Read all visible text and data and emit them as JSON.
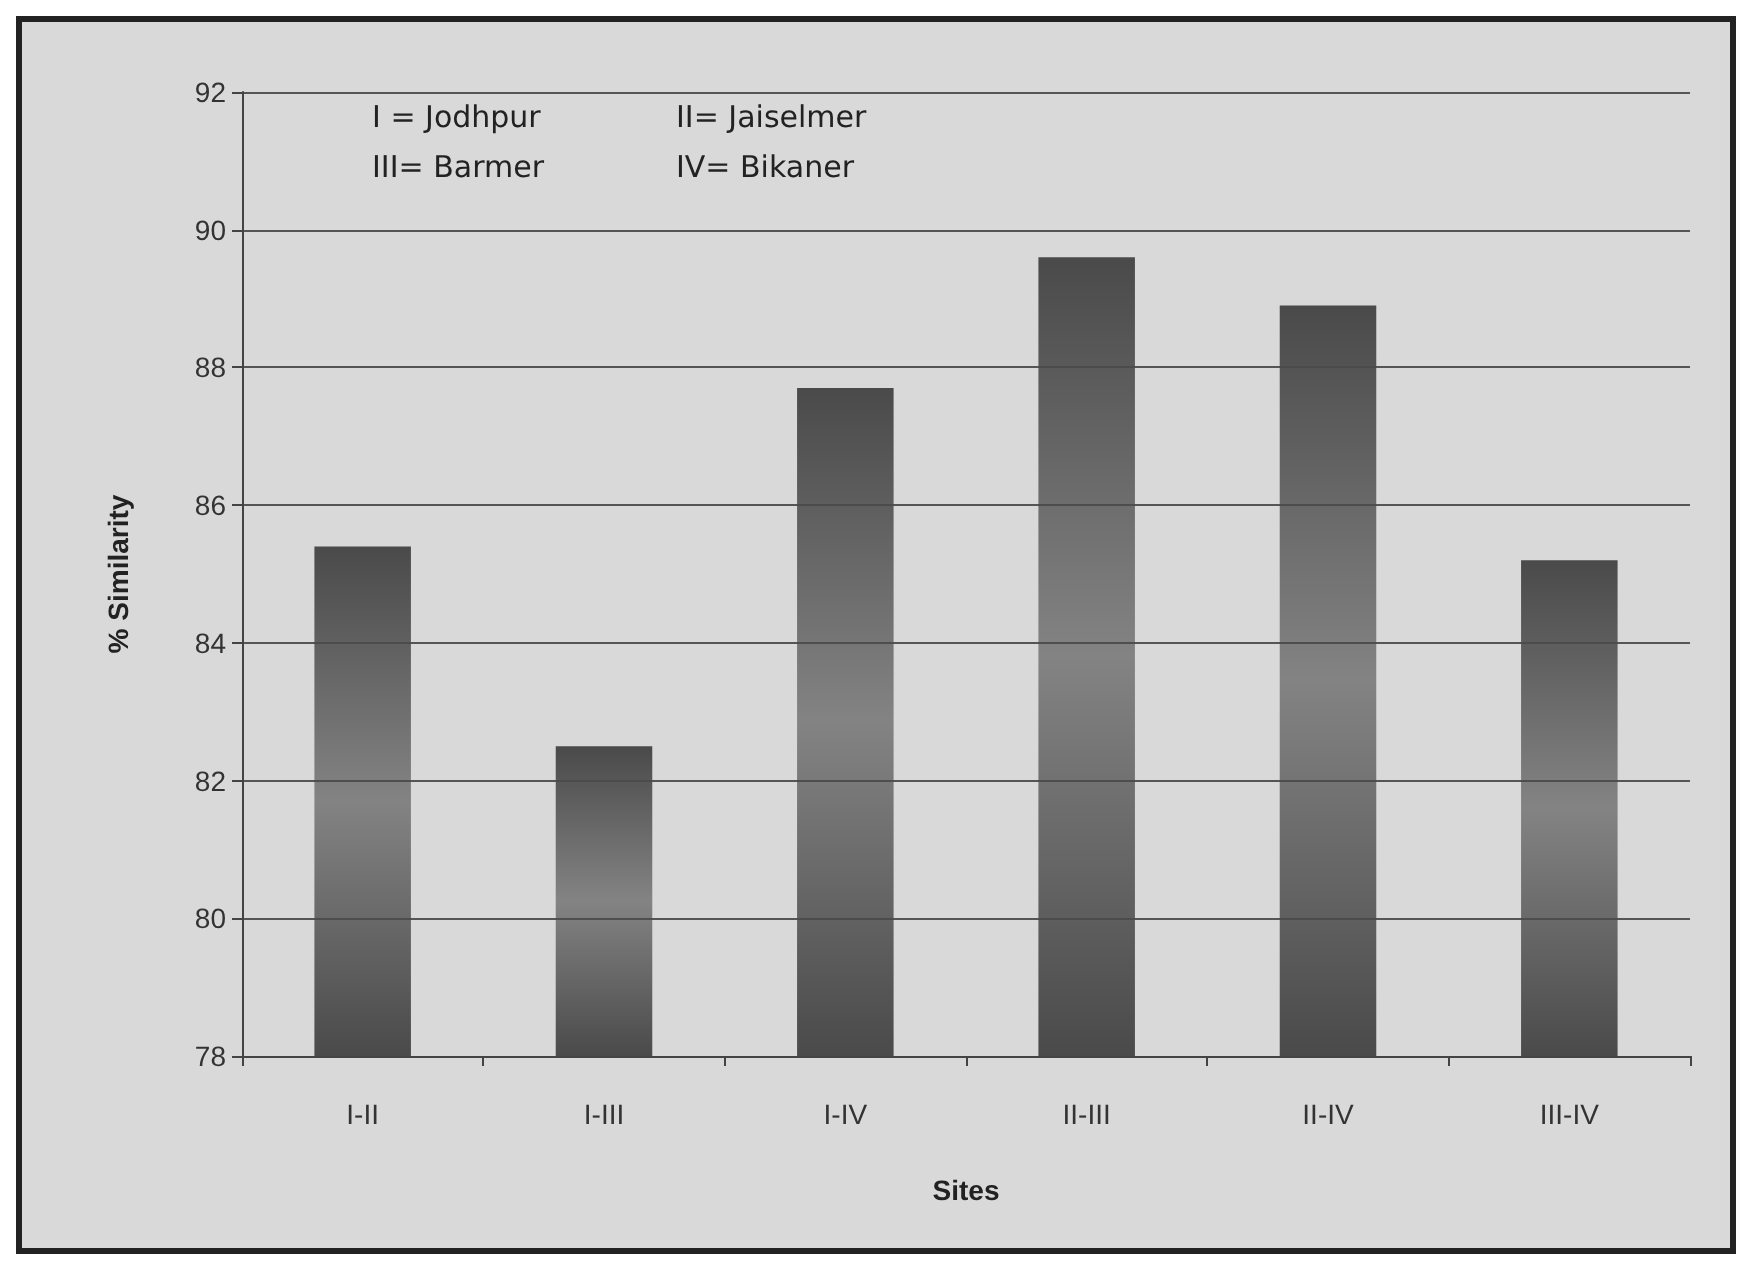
{
  "chart_data": {
    "type": "bar",
    "xlabel": "Sites",
    "ylabel": "% Similarity",
    "categories": [
      "I-II",
      "I-III",
      "I-IV",
      "II-III",
      "II-IV",
      "III-IV"
    ],
    "values": [
      85.4,
      82.5,
      87.7,
      89.6,
      88.9,
      85.2
    ],
    "color": "#4a4a4a",
    "ylim": [
      78,
      92
    ],
    "yticks": [
      78,
      80,
      82,
      84,
      86,
      88,
      90,
      92
    ],
    "grid": "y",
    "annotations": [
      "I = Jodhpur",
      "II= Jaiselmer",
      "III= Barmer",
      "IV= Bikaner"
    ]
  }
}
